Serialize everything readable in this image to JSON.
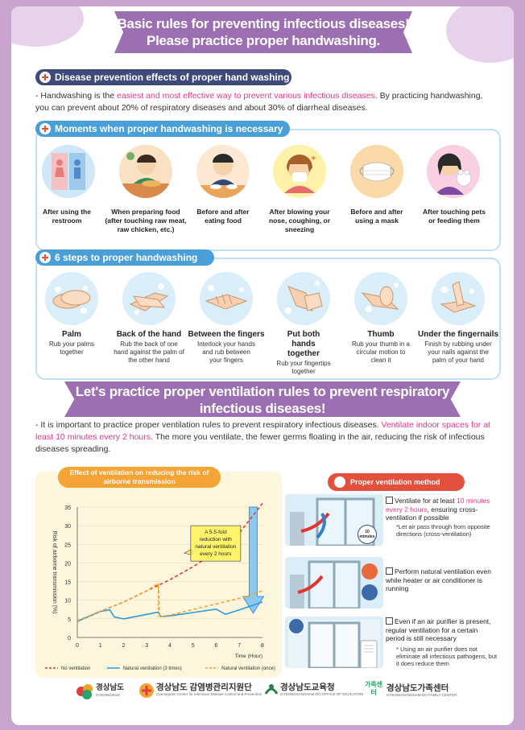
{
  "header": {
    "line1": "Basic rules for preventing infectious diseases!",
    "line2": "Please practice proper handwashing."
  },
  "section1": {
    "title": "Disease prevention effects of proper hand washing",
    "text_pre": "- Handwashing is the ",
    "text_hl": "easiest and most effective way to prevent various infectious diseases",
    "text_post": ". By practicing handwashing, you can prevent about 20% of respiratory diseases and about 30% of diarrheal diseases."
  },
  "section2": {
    "title": "Moments when proper handwashing is necessary",
    "moments": [
      {
        "label": "After using the restroom",
        "icon": "restroom-icon"
      },
      {
        "label": "When preparing food (after touching raw meat, raw chicken, etc.)",
        "icon": "cooking-icon"
      },
      {
        "label": "Before and after eating food",
        "icon": "eating-icon"
      },
      {
        "label": "After blowing your nose, coughing, or sneezing",
        "icon": "sneezing-icon"
      },
      {
        "label": "Before and after using a mask",
        "icon": "mask-icon"
      },
      {
        "label": "After touching pets or feeding them",
        "icon": "pet-icon"
      }
    ]
  },
  "section3": {
    "title": "6 steps to proper handwashing",
    "steps": [
      {
        "title": "Palm",
        "desc": "Rub your palms together"
      },
      {
        "title": "Back of the hand",
        "desc": "Rub the back of one hand against the palm of the other hand"
      },
      {
        "title": "Between the fingers",
        "desc": "Interlock your hands and rub between your fingers"
      },
      {
        "title": "Put both hands together",
        "desc": "Rub your fingertips together"
      },
      {
        "title": "Thumb",
        "desc": "Rub your thumb in a circular motion to clean it"
      },
      {
        "title": "Under the fingernails",
        "desc": "Finish by rubbing under your nails against the palm of your hand"
      }
    ]
  },
  "ventilation": {
    "header1": "Let's practice proper ventilation rules to prevent respiratory",
    "header2": "infectious diseases!",
    "text_pre": "- It is important to practice proper ventilation rules to prevent respiratory infectious diseases. ",
    "text_hl": "Ventilate indoor spaces for at least 10 minutes every 2 hours.",
    "text_post": " The more you ventilate, the fewer germs floating in the air, reducing the risk of infectious diseases spreading.",
    "method_title": "Proper ventilation method",
    "methods": [
      {
        "pre": "Ventilate for at least ",
        "hl": "10 minutes every 2 hours",
        "post": ", ensuring cross-ventilation if possible",
        "note": "*Let air pass through from opposite directions (cross-ventilation)",
        "badge": "10 minutes"
      },
      {
        "pre": "Perform natural ventilation even while heater or air conditioner is running",
        "hl": "",
        "post": "",
        "note": ""
      },
      {
        "pre": "Even if an air purifier is present, regular ventilation for a certain period is still necessary",
        "hl": "",
        "post": "",
        "note": "* Using an air purifier does not eliminate all infectious pathogens, but it does reduce them"
      }
    ]
  },
  "chart_data": {
    "type": "line",
    "title": "Effect of ventilation on reducing the risk of airborne transmission",
    "xlabel": "Time (Hour)",
    "ylabel": "Risk of airborne transmission (%)",
    "xlim": [
      0,
      8
    ],
    "ylim": [
      0,
      35
    ],
    "xticks": [
      0,
      1,
      2,
      3,
      4,
      5,
      6,
      7,
      8
    ],
    "yticks": [
      0,
      5,
      10,
      15,
      20,
      25,
      30,
      35
    ],
    "annotation": "A 5.5-fold reduction with natural ventilation every 2 hours",
    "annotation_hl": "5.5-fold",
    "series": [
      {
        "name": "No ventilation",
        "color": "#d93b3b",
        "dash": "dashed",
        "x": [
          0,
          1,
          2,
          3,
          4,
          5,
          6,
          7,
          8
        ],
        "y": [
          4.5,
          7,
          9.5,
          12.5,
          15.5,
          19,
          23,
          28,
          36
        ]
      },
      {
        "name": "Natural ventilation (3 times)",
        "color": "#2d9ad7",
        "dash": "solid",
        "x": [
          0,
          1,
          1.4,
          1.6,
          2,
          3,
          3.5,
          3.6,
          4,
          5,
          6,
          6.4,
          7,
          8
        ],
        "y": [
          4.3,
          7,
          7.4,
          5.5,
          5,
          6.2,
          6.8,
          5.6,
          5.8,
          6.7,
          7.6,
          6.2,
          7.4,
          9.5
        ]
      },
      {
        "name": "Natural ventilation (once)",
        "color": "#f0a12a",
        "dash": "dashed",
        "x": [
          0,
          1,
          2,
          3,
          3.5,
          3.55,
          4,
          5,
          6,
          7,
          8
        ],
        "y": [
          4.5,
          7,
          9.5,
          12.5,
          14.5,
          5.5,
          6,
          7.5,
          9,
          10.5,
          12.5
        ]
      }
    ]
  },
  "logos": [
    {
      "ko": "경상남도",
      "en": "GYEONGNAM"
    },
    {
      "ko": "경상남도 감염병관리지원단",
      "en": "Gyeongnam Center for Infectious Disease Control and Prevention"
    },
    {
      "ko": "경상남도교육청",
      "en": "GYEONGSANGNAM-DO OFFICE OF EDUCATION"
    },
    {
      "ko": "경상남도가족센터",
      "en": "GYEONGSANGNAM-DO FAMILY CENTER",
      "badge": "가족센터"
    }
  ],
  "colors": {
    "purple": "#9b6fb1",
    "navy": "#3d4a7a",
    "blue": "#4a9fd8",
    "red": "#e3503e",
    "pink": "#e0358d"
  }
}
